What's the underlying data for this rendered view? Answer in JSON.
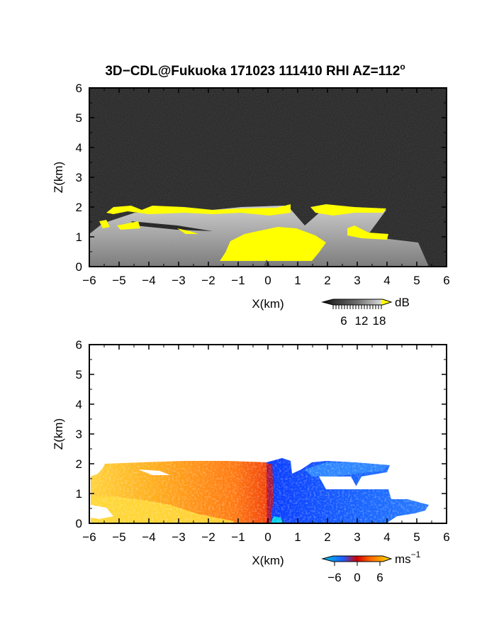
{
  "title": "3D−CDL@Fukuoka 171023 111410 RHI AZ=112",
  "title_superscript": "o",
  "chart_data": [
    {
      "type": "heatmap",
      "panel": "backscatter",
      "xlabel": "X(km)",
      "ylabel": "Z(km)",
      "xlim": [
        -6,
        6
      ],
      "ylim": [
        0,
        6
      ],
      "x_ticks": [
        "−6",
        "−5",
        "−4",
        "−3",
        "−2",
        "−1",
        "0",
        "1",
        "2",
        "3",
        "4",
        "5",
        "6"
      ],
      "y_ticks": [
        "0",
        "1",
        "2",
        "3",
        "4",
        "5",
        "6"
      ],
      "colorbar": {
        "unit": "dB",
        "tick_labels": [
          "6",
          "12",
          "18"
        ],
        "colors": [
          "#101010",
          "#6e6e6e",
          "#d8d8d8",
          "#ffff00"
        ]
      },
      "features": [
        {
          "name": "high-backscatter-near-lidar",
          "x": [
            -1.5,
            1.6
          ],
          "z": [
            0,
            1.3
          ],
          "color": "#ffff00"
        },
        {
          "name": "cloud-base-layer",
          "x": [
            -5.6,
            0.8
          ],
          "z": [
            1.8,
            2.05
          ],
          "color": "#ffff00"
        },
        {
          "name": "cloud-base-layer-east",
          "x": [
            1.4,
            4.0
          ],
          "z": [
            1.8,
            2.0
          ],
          "color": "#ffff00"
        },
        {
          "name": "lower-cloud-west",
          "x": [
            -5.6,
            -4.5
          ],
          "z": [
            1.2,
            1.5
          ],
          "color": "#ffff00"
        },
        {
          "name": "lower-cloud-east",
          "x": [
            2.6,
            4.0
          ],
          "z": [
            0.95,
            1.25
          ],
          "color": "#ffff00"
        }
      ]
    },
    {
      "type": "heatmap",
      "panel": "doppler-velocity",
      "xlabel": "X(km)",
      "ylabel": "Z(km)",
      "xlim": [
        -6,
        6
      ],
      "ylim": [
        0,
        6
      ],
      "x_ticks": [
        "−6",
        "−5",
        "−4",
        "−3",
        "−2",
        "−1",
        "0",
        "1",
        "2",
        "3",
        "4",
        "5",
        "6"
      ],
      "y_ticks": [
        "0",
        "1",
        "2",
        "3",
        "4",
        "5",
        "6"
      ],
      "colorbar": {
        "unit": "ms",
        "unit_superscript": "−1",
        "tick_labels": [
          "−6",
          "0",
          "6"
        ],
        "colors": [
          "#00c8e0",
          "#1f5cff",
          "#d00000",
          "#ff6a00",
          "#ffe000"
        ]
      },
      "features": [
        {
          "name": "receding-flow-west",
          "x": [
            -5.6,
            0.1
          ],
          "z": [
            0,
            2.05
          ],
          "velocity_ms": 5
        },
        {
          "name": "approaching-flow-east",
          "x": [
            0.1,
            4.2
          ],
          "z": [
            0,
            2.05
          ],
          "velocity_ms": -4
        },
        {
          "name": "approaching-flow-low-east",
          "x": [
            4.2,
            5.4
          ],
          "z": [
            0,
            0.8
          ],
          "velocity_ms": -4
        }
      ]
    }
  ]
}
